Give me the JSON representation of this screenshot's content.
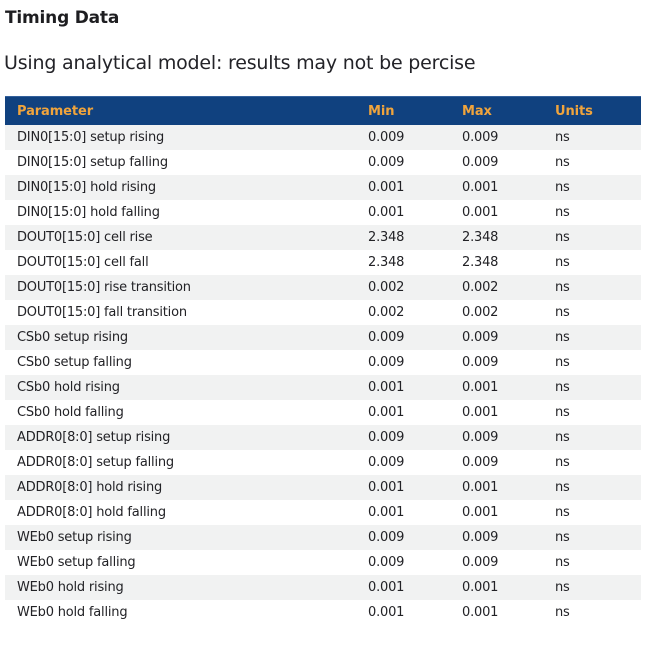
{
  "page": {
    "title": "Timing Data",
    "subtitle": "Using analytical model: results may not be percise"
  },
  "table": {
    "columns": [
      "Parameter",
      "Min",
      "Max",
      "Units"
    ],
    "rows": [
      [
        "DIN0[15:0] setup rising",
        "0.009",
        "0.009",
        "ns"
      ],
      [
        "DIN0[15:0] setup falling",
        "0.009",
        "0.009",
        "ns"
      ],
      [
        "DIN0[15:0] hold rising",
        "0.001",
        "0.001",
        "ns"
      ],
      [
        "DIN0[15:0] hold falling",
        "0.001",
        "0.001",
        "ns"
      ],
      [
        "DOUT0[15:0] cell rise",
        "2.348",
        "2.348",
        "ns"
      ],
      [
        "DOUT0[15:0] cell fall",
        "2.348",
        "2.348",
        "ns"
      ],
      [
        "DOUT0[15:0] rise transition",
        "0.002",
        "0.002",
        "ns"
      ],
      [
        "DOUT0[15:0] fall transition",
        "0.002",
        "0.002",
        "ns"
      ],
      [
        "CSb0 setup rising",
        "0.009",
        "0.009",
        "ns"
      ],
      [
        "CSb0 setup falling",
        "0.009",
        "0.009",
        "ns"
      ],
      [
        "CSb0 hold rising",
        "0.001",
        "0.001",
        "ns"
      ],
      [
        "CSb0 hold falling",
        "0.001",
        "0.001",
        "ns"
      ],
      [
        "ADDR0[8:0] setup rising",
        "0.009",
        "0.009",
        "ns"
      ],
      [
        "ADDR0[8:0] setup falling",
        "0.009",
        "0.009",
        "ns"
      ],
      [
        "ADDR0[8:0] hold rising",
        "0.001",
        "0.001",
        "ns"
      ],
      [
        "ADDR0[8:0] hold falling",
        "0.001",
        "0.001",
        "ns"
      ],
      [
        "WEb0 setup rising",
        "0.009",
        "0.009",
        "ns"
      ],
      [
        "WEb0 setup falling",
        "0.009",
        "0.009",
        "ns"
      ],
      [
        "WEb0 hold rising",
        "0.001",
        "0.001",
        "ns"
      ],
      [
        "WEb0 hold falling",
        "0.001",
        "0.001",
        "ns"
      ]
    ]
  },
  "colors": {
    "header_bg": "#10417F",
    "header_text": "#F0A43C",
    "stripe": "#F1F2F2",
    "body_text": "#222226"
  }
}
